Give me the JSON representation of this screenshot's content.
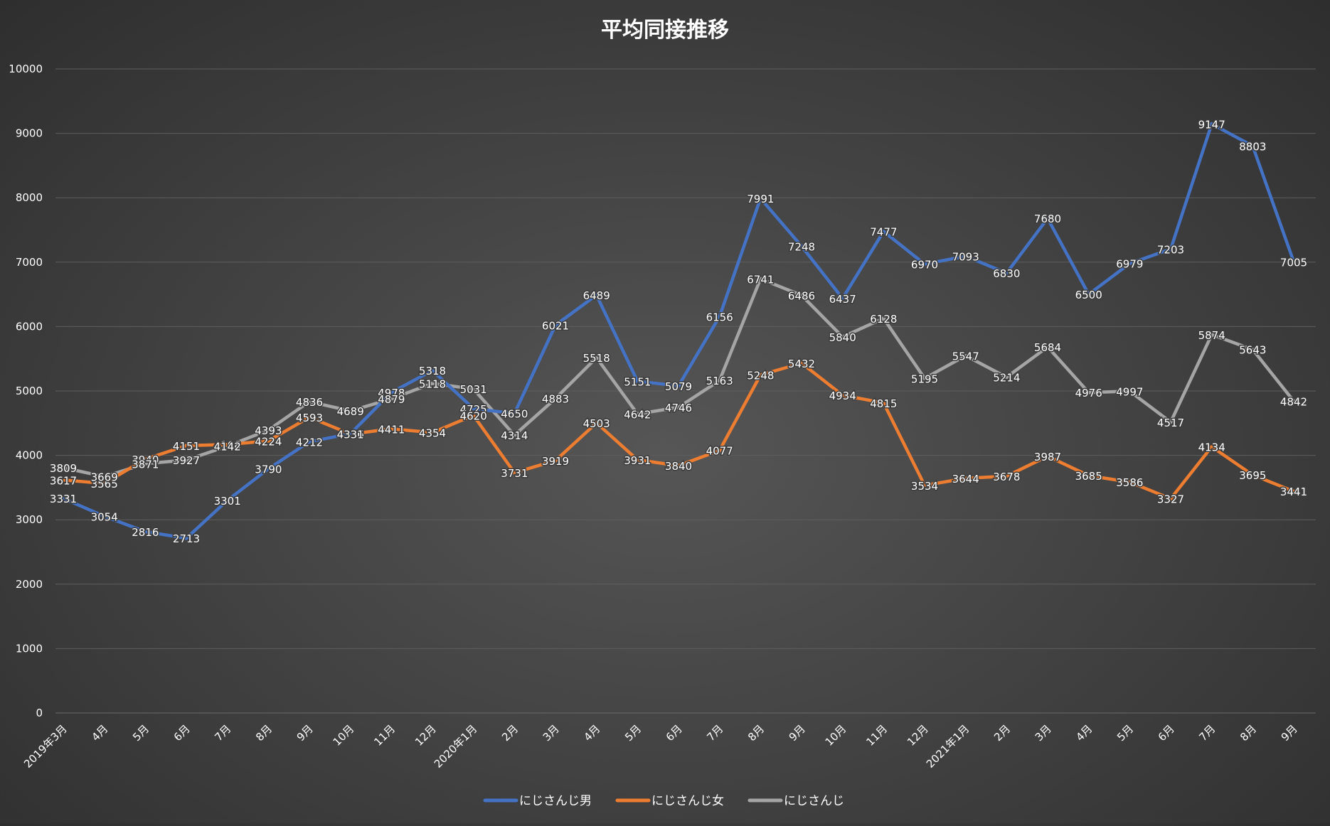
{
  "chart_data": {
    "type": "line",
    "title": "平均同接推移",
    "xlabel": "",
    "ylabel": "",
    "ylim": [
      0,
      10000
    ],
    "yticks": [
      0,
      1000,
      2000,
      3000,
      4000,
      5000,
      6000,
      7000,
      8000,
      9000,
      10000
    ],
    "grid": true,
    "legend_position": "bottom",
    "categories": [
      "2019年3月",
      "4月",
      "5月",
      "6月",
      "7月",
      "8月",
      "9月",
      "10月",
      "11月",
      "12月",
      "2020年1月",
      "2月",
      "3月",
      "4月",
      "5月",
      "6月",
      "7月",
      "8月",
      "9月",
      "10月",
      "11月",
      "12月",
      "2021年1月",
      "2月",
      "3月",
      "4月",
      "5月",
      "6月",
      "7月",
      "8月",
      "9月"
    ],
    "series": [
      {
        "name": "にじさんじ男",
        "color": "#4472c4",
        "values": [
          3331,
          3054,
          2816,
          2713,
          3301,
          3790,
          4212,
          4336,
          4978,
          5318,
          4725,
          4650,
          6021,
          6489,
          5151,
          5079,
          6156,
          7991,
          7248,
          6437,
          7477,
          6970,
          7093,
          6830,
          7680,
          6500,
          6979,
          7203,
          9147,
          8803,
          7005
        ]
      },
      {
        "name": "にじさんじ女",
        "color": "#ed7d31",
        "values": [
          3617,
          3565,
          3940,
          4151,
          4168,
          4224,
          4593,
          4331,
          4411,
          4354,
          4620,
          3731,
          3919,
          4503,
          3931,
          3840,
          4077,
          5248,
          5432,
          4934,
          4815,
          3534,
          3644,
          3678,
          3987,
          3685,
          3586,
          3327,
          4134,
          3695,
          3441
        ]
      },
      {
        "name": "にじさんじ",
        "color": "#a5a5a5",
        "values": [
          3809,
          3669,
          3871,
          3927,
          4142,
          4393,
          4836,
          4689,
          4879,
          5118,
          5031,
          4314,
          4883,
          5518,
          4642,
          4746,
          5163,
          6741,
          6486,
          5840,
          6128,
          5195,
          5547,
          5214,
          5684,
          4976,
          4997,
          4517,
          5874,
          5643,
          4842
        ]
      }
    ]
  }
}
